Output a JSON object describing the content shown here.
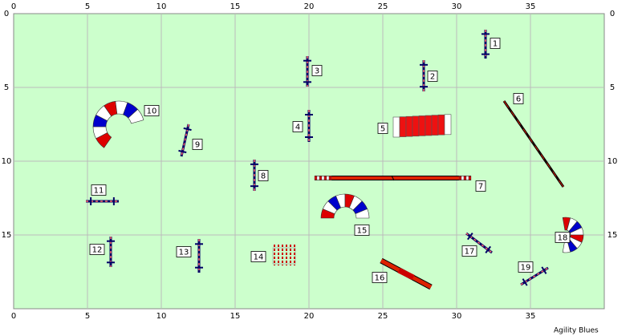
{
  "axes": {
    "x_ticks": [
      0,
      5,
      10,
      15,
      20,
      25,
      30,
      35
    ],
    "y_ticks": [
      0,
      5,
      10,
      15
    ]
  },
  "obstacles": [
    {
      "label": "1"
    },
    {
      "label": "2"
    },
    {
      "label": "3"
    },
    {
      "label": "4"
    },
    {
      "label": "5"
    },
    {
      "label": "6"
    },
    {
      "label": "7"
    },
    {
      "label": "8"
    },
    {
      "label": "9"
    },
    {
      "label": "10"
    },
    {
      "label": "11"
    },
    {
      "label": "12"
    },
    {
      "label": "13"
    },
    {
      "label": "14"
    },
    {
      "label": "15"
    },
    {
      "label": "16"
    },
    {
      "label": "17"
    },
    {
      "label": "18"
    },
    {
      "label": "19"
    }
  ],
  "footer": "Agility Blues"
}
